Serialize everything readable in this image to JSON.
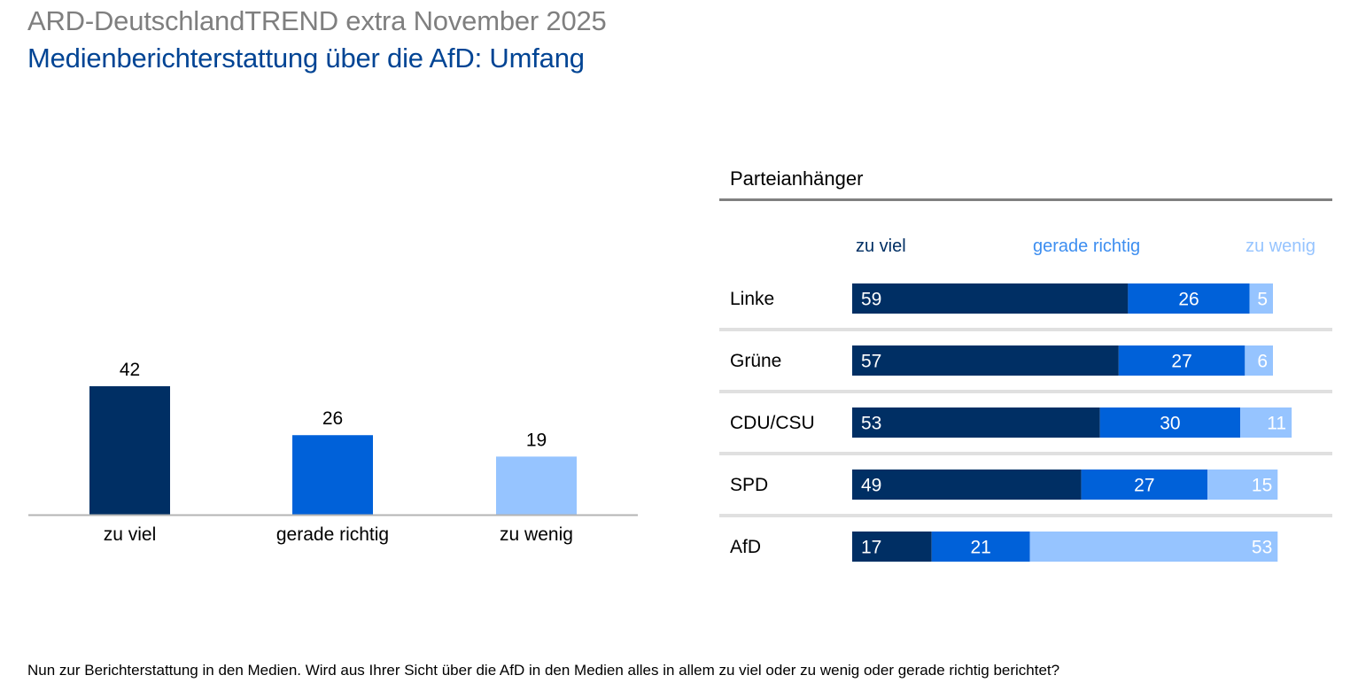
{
  "header": {
    "title": "ARD-DeutschlandTREND extra November 2025",
    "subtitle": "Medienberichterstattung über die AfD: Umfang"
  },
  "footnote": "Nun zur Berichterstattung in den Medien. Wird aus Ihrer Sicht über die AfD in den Medien alles in allem zu viel oder zu wenig oder gerade richtig berichtet?",
  "colors": {
    "zu_viel": "#002f64",
    "gerade_richtig": "#0061d9",
    "zu_wenig": "#96c4ff",
    "title_gray": "#7f7f7f",
    "subtitle_blue": "#004494",
    "rule_gray": "#808080",
    "separator_gray": "#e0e0e0"
  },
  "chart_data": [
    {
      "type": "bar",
      "title": "",
      "categories": [
        "zu viel",
        "gerade richtig",
        "zu wenig"
      ],
      "values": [
        42,
        26,
        19
      ],
      "colors": [
        "#002f64",
        "#0061d9",
        "#96c4ff"
      ],
      "xlabel": "",
      "ylabel": "",
      "ylim": [
        0,
        42
      ],
      "grid": false,
      "data_labels": true
    },
    {
      "type": "bar",
      "orientation": "horizontal",
      "stacked": true,
      "title": "Parteianhänger",
      "categories": [
        "Linke",
        "Grüne",
        "CDU/CSU",
        "SPD",
        "AfD"
      ],
      "series": [
        {
          "name": "zu viel",
          "color": "#002f64",
          "label_color": "#002f64",
          "values": [
            59,
            57,
            53,
            49,
            17
          ]
        },
        {
          "name": "gerade richtig",
          "color": "#0061d9",
          "label_color": "#3d8ef0",
          "values": [
            26,
            27,
            30,
            27,
            21
          ]
        },
        {
          "name": "zu wenig",
          "color": "#96c4ff",
          "label_color": "#96c4ff",
          "values": [
            5,
            6,
            11,
            15,
            53
          ]
        }
      ],
      "xlim": [
        0,
        100
      ],
      "legend": "top",
      "grid": false,
      "data_labels": true
    }
  ]
}
